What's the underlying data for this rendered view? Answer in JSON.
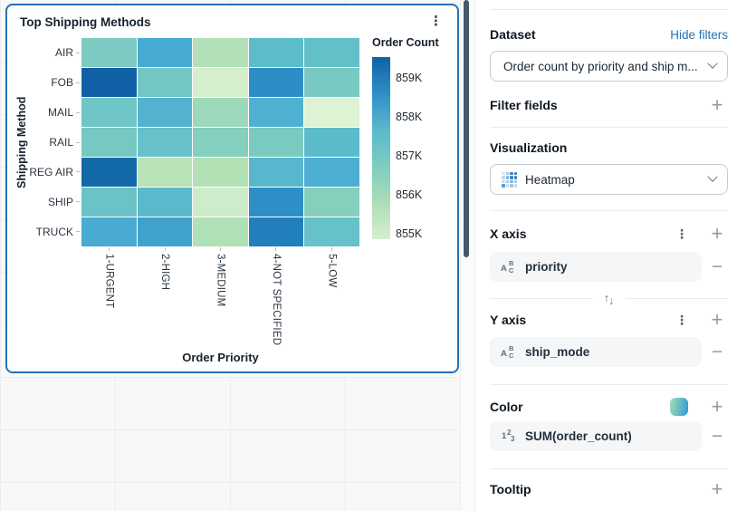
{
  "card": {
    "title": "Top Shipping Methods"
  },
  "chart_data": {
    "type": "heatmap",
    "title": "Top Shipping Methods",
    "xlabel": "Order Priority",
    "ylabel": "Shipping Method",
    "x_categories": [
      "1-URGENT",
      "2-HIGH",
      "3-MEDIUM",
      "4-NOT SPECIFIED",
      "5-LOW"
    ],
    "y_categories": [
      "AIR",
      "FOB",
      "MAIL",
      "RAIL",
      "REG AIR",
      "SHIP",
      "TRUCK"
    ],
    "values_k": [
      [
        856.4,
        857.3,
        855.5,
        856.9,
        856.7
      ],
      [
        859.0,
        856.5,
        855.0,
        858.1,
        856.4
      ],
      [
        856.5,
        857.1,
        855.8,
        857.2,
        855.0
      ],
      [
        856.4,
        856.6,
        856.1,
        856.3,
        856.9
      ],
      [
        858.9,
        855.5,
        855.5,
        857.0,
        857.2
      ],
      [
        856.6,
        856.9,
        855.1,
        858.1,
        856.1
      ],
      [
        857.3,
        857.6,
        855.5,
        858.4,
        856.7
      ]
    ],
    "cell_colors": [
      [
        "#7ccac2",
        "#47aad2",
        "#b2e0b8",
        "#5cbcca",
        "#63c0c8"
      ],
      [
        "#1160a5",
        "#72c7c3",
        "#d5efcd",
        "#2d8ec6",
        "#78c9c1"
      ],
      [
        "#70c6c6",
        "#52b2d0",
        "#9cd8ba",
        "#4fb0d1",
        "#def2d4"
      ],
      [
        "#76c8c2",
        "#68c1c8",
        "#85cfbe",
        "#7bcac0",
        "#5cbbcb"
      ],
      [
        "#1368a8",
        "#b8e3b8",
        "#b3e1b6",
        "#58b7cd",
        "#4caed2"
      ],
      [
        "#6ac3c6",
        "#5abacb",
        "#cdeccb",
        "#2d8fc5",
        "#85cfbd"
      ],
      [
        "#4aabd2",
        "#3fa2cd",
        "#b0e0b6",
        "#2180bc",
        "#66c1c8"
      ]
    ],
    "legend": {
      "title": "Order Count",
      "ticks": [
        "859K",
        "858K",
        "857K",
        "856K",
        "855K"
      ],
      "min": 855000,
      "max": 859000,
      "gradient": [
        "#0d63a5",
        "#2f8ec6",
        "#5ab9cc",
        "#7fccc0",
        "#abdeb6",
        "#d6efce"
      ]
    }
  },
  "panel": {
    "dataset": {
      "label": "Dataset",
      "link": "Hide filters",
      "selected": "Order count by priority and ship m..."
    },
    "filter_fields": {
      "label": "Filter fields"
    },
    "visualization": {
      "label": "Visualization",
      "selected": "Heatmap"
    },
    "x_axis": {
      "label": "X axis",
      "field": "priority",
      "field_type": "text"
    },
    "y_axis": {
      "label": "Y axis",
      "field": "ship_mode",
      "field_type": "text"
    },
    "color": {
      "label": "Color",
      "field": "SUM(order_count)",
      "field_type": "number",
      "swatch_gradient": [
        "#a6dfb2",
        "#2f9ad6"
      ]
    },
    "tooltip": {
      "label": "Tooltip"
    }
  }
}
